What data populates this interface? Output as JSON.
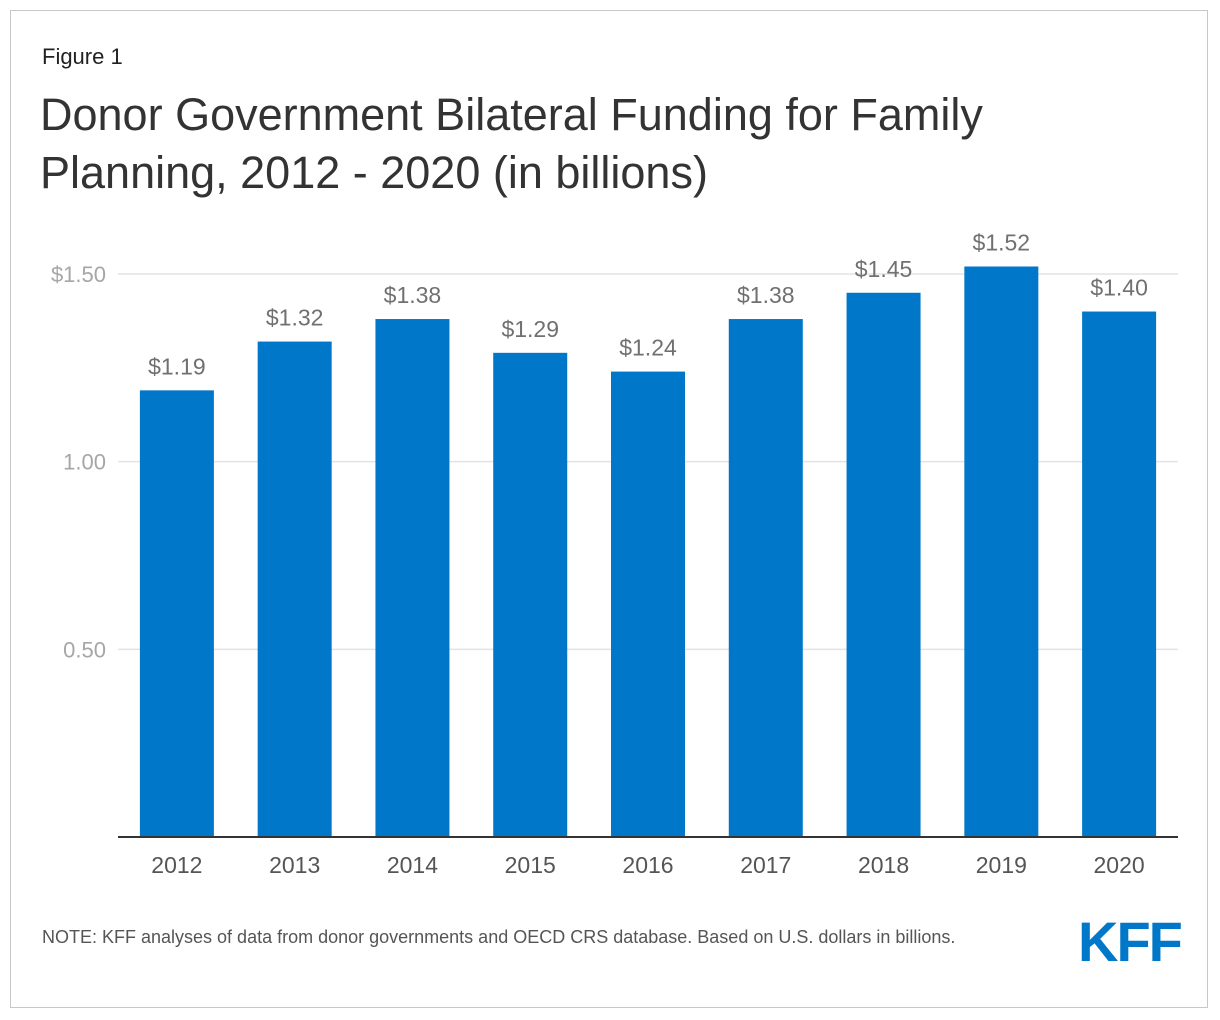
{
  "figure_label": "Figure 1",
  "title": "Donor Government Bilateral Funding for Family Planning, 2012 - 2020 (in billions)",
  "note": "NOTE: KFF analyses of data from donor governments and OECD CRS database. Based on U.S. dollars in billions.",
  "logo_text": "KFF",
  "colors": {
    "bar": "#0077c8",
    "gridline": "#e3e3e3",
    "axis": "#333333",
    "tick_text": "#a6a6a6",
    "label_text": "#707070",
    "category_text": "#555555"
  },
  "chart_data": {
    "type": "bar",
    "title": "Donor Government Bilateral Funding for Family Planning, 2012 - 2020 (in billions)",
    "xlabel": "",
    "ylabel": "",
    "categories": [
      "2012",
      "2013",
      "2014",
      "2015",
      "2016",
      "2017",
      "2018",
      "2019",
      "2020"
    ],
    "values": [
      1.19,
      1.32,
      1.38,
      1.29,
      1.24,
      1.38,
      1.45,
      1.52,
      1.4
    ],
    "value_labels": [
      "$1.19",
      "$1.32",
      "$1.38",
      "$1.29",
      "$1.24",
      "$1.38",
      "$1.45",
      "$1.52",
      "$1.40"
    ],
    "yticks": [
      0.5,
      1.0,
      1.5
    ],
    "ytick_labels": [
      "0.50",
      "1.00",
      "$1.50"
    ],
    "ylim": [
      0,
      1.5
    ],
    "grid": true,
    "legend": "none"
  }
}
